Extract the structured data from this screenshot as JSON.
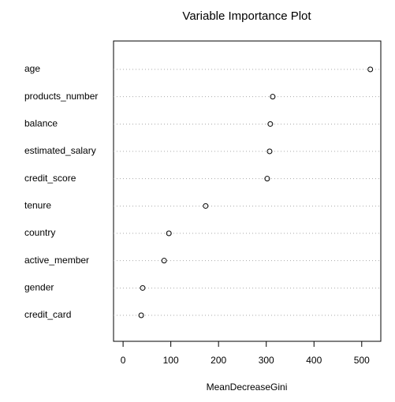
{
  "chart_data": {
    "type": "dot",
    "title": "Variable Importance Plot",
    "x_label": "MeanDecreaseGini",
    "categories": [
      "age",
      "products_number",
      "balance",
      "estimated_salary",
      "credit_score",
      "tenure",
      "country",
      "active_member",
      "gender",
      "credit_card"
    ],
    "values": [
      518,
      313.5,
      308.5,
      307,
      302,
      173,
      96,
      86,
      41,
      38
    ],
    "color": "#000000",
    "xlim": [
      -20,
      540
    ],
    "xticks": [
      0,
      100,
      200,
      300,
      400,
      500
    ],
    "grid": true
  }
}
